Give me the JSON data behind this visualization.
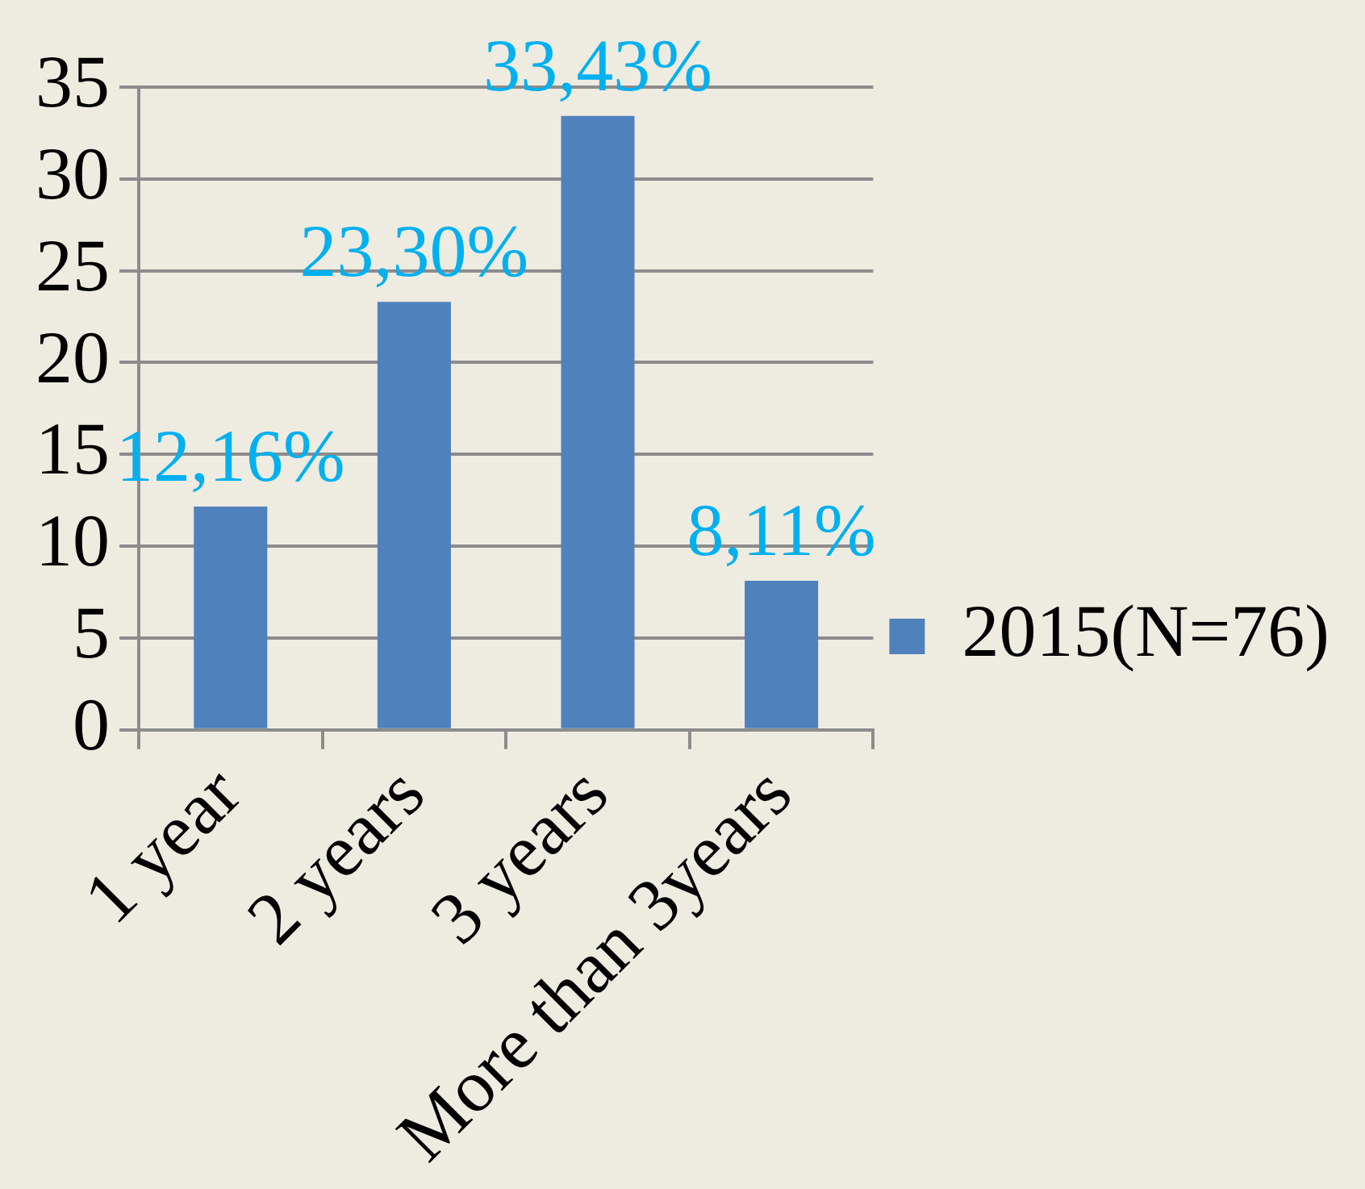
{
  "chart_data": {
    "type": "bar",
    "categories": [
      "1 year",
      "2 years",
      "3 years",
      "More than 3years"
    ],
    "series": [
      {
        "name": "2015(N=76)",
        "color": "#4f81bd",
        "values": [
          12.16,
          23.3,
          33.43,
          8.11
        ],
        "value_labels": [
          "12,16%",
          "23,30%",
          "33,43%",
          "8,11%"
        ]
      }
    ],
    "ylim": [
      0,
      35
    ],
    "yticks": [
      0,
      5,
      10,
      15,
      20,
      25,
      30,
      35
    ],
    "grid": "y",
    "legend": "right"
  }
}
